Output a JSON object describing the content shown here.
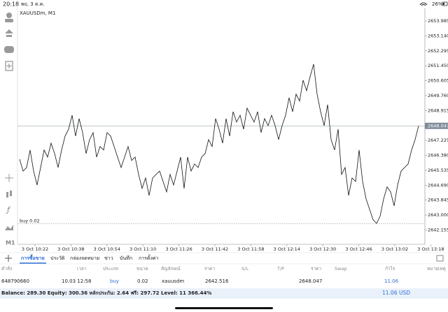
{
  "status": {
    "time": "20:18",
    "date": "พฤ. 3 ต.ค.",
    "battery": "26%"
  },
  "chart": {
    "type": "line",
    "symbol": "XAUUSDm, M1",
    "values": [
      2646.16,
      2645.49,
      2645.69,
      2646.68,
      2645.49,
      2644.7,
      2645.69,
      2646.68,
      2646.28,
      2647.07,
      2646.48,
      2645.69,
      2646.68,
      2647.47,
      2647.86,
      2648.65,
      2647.47,
      2648.46,
      2647.67,
      2646.48,
      2647.27,
      2647.67,
      2646.28,
      2646.88,
      2646.68,
      2647.67,
      2647.47,
      2646.88,
      2646.28,
      2645.69,
      2646.28,
      2646.88,
      2646.09,
      2646.28,
      2645.3,
      2644.51,
      2645.1,
      2644.11,
      2645.1,
      2645.3,
      2645.49,
      2644.9,
      2644.31,
      2645.3,
      2644.7,
      2645.49,
      2646.28,
      2644.51,
      2646.28,
      2645.49,
      2645.89,
      2645.69,
      2646.28,
      2646.48,
      2647.27,
      2646.88,
      2648.46,
      2647.86,
      2647.07,
      2648.46,
      2647.47,
      2648.85,
      2648.26,
      2648.65,
      2647.86,
      2649.05,
      2648.65,
      2648.26,
      2648.85,
      2647.67,
      2648.46,
      2648.06,
      2648.65,
      2648.06,
      2647.27,
      2648.06,
      2648.65,
      2649.64,
      2648.85,
      2649.84,
      2649.45,
      2650.63,
      2650.04,
      2650.83,
      2651.54,
      2649.84,
      2648.85,
      2648.06,
      2649.25,
      2647.27,
      2646.68,
      2647.86,
      2645.3,
      2645.69,
      2644.11,
      2645.1,
      2644.9,
      2646.68,
      2644.9,
      2643.91,
      2643.32,
      2642.73,
      2642.53,
      2642.93,
      2643.91,
      2644.59,
      2644.31,
      2643.52,
      2644.7,
      2645.49,
      2645.69,
      2645.89,
      2646.68,
      2647.27,
      2648.05
    ],
    "ylim": [
      2641.345,
      2654.696
    ],
    "yticks": [
      2653.985,
      {
        "value": 2653.14,
        "label": "2653.140"
      },
      2652.295,
      {
        "value": 2651.45,
        "label": "2651.450"
      },
      2650.605,
      {
        "value": 2649.76,
        "label": "2649.760"
      },
      2648.915,
      2647.225,
      {
        "value": 2646.38,
        "label": "2646.380"
      },
      2645.535,
      {
        "value": 2644.69,
        "label": "2644.690"
      },
      2643.845,
      {
        "value": 2643.0,
        "label": "2643.000"
      },
      2642.155
    ],
    "current_price": 2648.047,
    "order_label": "buy 0.02",
    "xticks": [
      "3 Oct 10:22",
      "3 Oct 10:38",
      "3 Oct 10:54",
      "3 Oct 11:10",
      "3 Oct 11:26",
      "3 Oct 11:42",
      "3 Oct 11:58",
      "3 Oct 12:14",
      "3 Oct 12:30",
      "3 Oct 12:46",
      "3 Oct 13:02",
      "3 Oct 13:18"
    ]
  },
  "toolbar": {
    "timeframe": "M1"
  },
  "tabs": [
    "การซื้อขาย",
    "ประวัติ",
    "กล่องจดหมาย",
    "ข่าว",
    "บันทึก",
    "การตั้งค่า"
  ],
  "table": {
    "headers": [
      "คำสั่ง",
      "เวลา",
      "ประเภท",
      "ขนาด",
      "สัญลักษณ์",
      "ราคา",
      "S/L",
      "T/P",
      "ราคา",
      "Swap",
      "กำไร",
      "หมายเหตุ"
    ],
    "rows": [
      {
        "order": "648790660",
        "time": "10.03 12:58",
        "type": "buy",
        "volume": "0.02",
        "symbol": "xauusdm",
        "price": 2642.516,
        "current": 2648.047,
        "profit": 11.06
      }
    ]
  },
  "balance": {
    "text": "Balance: 289.30 Equity: 300.36 หลักประกัน: 2.64 ฟรี: 297.72 Level: 11 366.44%",
    "profit": 11.06,
    "currency": "USD"
  }
}
